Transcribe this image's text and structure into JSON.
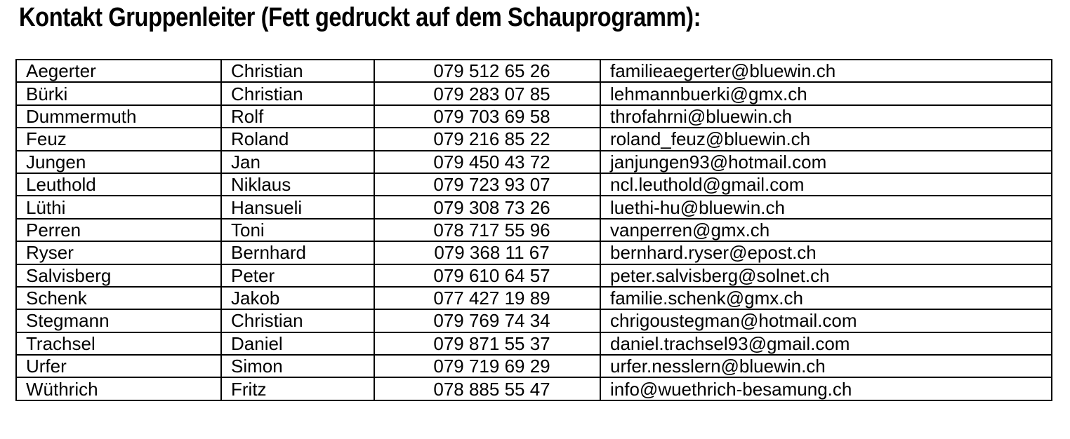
{
  "page": {
    "title": "Kontakt Gruppenleiter (Fett gedruckt auf dem Schauprogramm):"
  },
  "table": {
    "columns": [
      "lastname",
      "firstname",
      "phone",
      "email"
    ],
    "rows": [
      {
        "lastname": "Aegerter",
        "firstname": "Christian",
        "phone": "079 512 65 26",
        "email": "familieaegerter@bluewin.ch"
      },
      {
        "lastname": "Bürki",
        "firstname": "Christian",
        "phone": "079 283 07 85",
        "email": "lehmannbuerki@gmx.ch"
      },
      {
        "lastname": "Dummermuth",
        "firstname": "Rolf",
        "phone": "079 703 69 58",
        "email": "throfahrni@bluewin.ch"
      },
      {
        "lastname": "Feuz",
        "firstname": "Roland",
        "phone": "079 216 85 22",
        "email": "roland_feuz@bluewin.ch"
      },
      {
        "lastname": "Jungen",
        "firstname": "Jan",
        "phone": "079 450 43 72",
        "email": "janjungen93@hotmail.com"
      },
      {
        "lastname": "Leuthold",
        "firstname": "Niklaus",
        "phone": "079 723 93 07",
        "email": "ncl.leuthold@gmail.com"
      },
      {
        "lastname": "Lüthi",
        "firstname": "Hansueli",
        "phone": "079 308 73 26",
        "email": "luethi-hu@bluewin.ch"
      },
      {
        "lastname": "Perren",
        "firstname": "Toni",
        "phone": "078 717 55 96",
        "email": "vanperren@gmx.ch"
      },
      {
        "lastname": "Ryser",
        "firstname": "Bernhard",
        "phone": "079 368 11 67",
        "email": "bernhard.ryser@epost.ch"
      },
      {
        "lastname": "Salvisberg",
        "firstname": "Peter",
        "phone": "079 610 64 57",
        "email": "peter.salvisberg@solnet.ch"
      },
      {
        "lastname": "Schenk",
        "firstname": "Jakob",
        "phone": "077 427 19 89",
        "email": "familie.schenk@gmx.ch"
      },
      {
        "lastname": "Stegmann",
        "firstname": "Christian",
        "phone": "079 769 74 34",
        "email": "chrigoustegman@hotmail.com"
      },
      {
        "lastname": "Trachsel",
        "firstname": "Daniel",
        "phone": "079 871 55 37",
        "email": "daniel.trachsel93@gmail.com"
      },
      {
        "lastname": "Urfer",
        "firstname": "Simon",
        "phone": "079 719 69 29",
        "email": "urfer.nesslern@bluewin.ch"
      },
      {
        "lastname": "Wüthrich",
        "firstname": "Fritz",
        "phone": "078 885 55 47",
        "email": "info@wuethrich-besamung.ch"
      }
    ]
  },
  "colors": {
    "text": "#000000",
    "background": "#ffffff",
    "border": "#000000"
  }
}
